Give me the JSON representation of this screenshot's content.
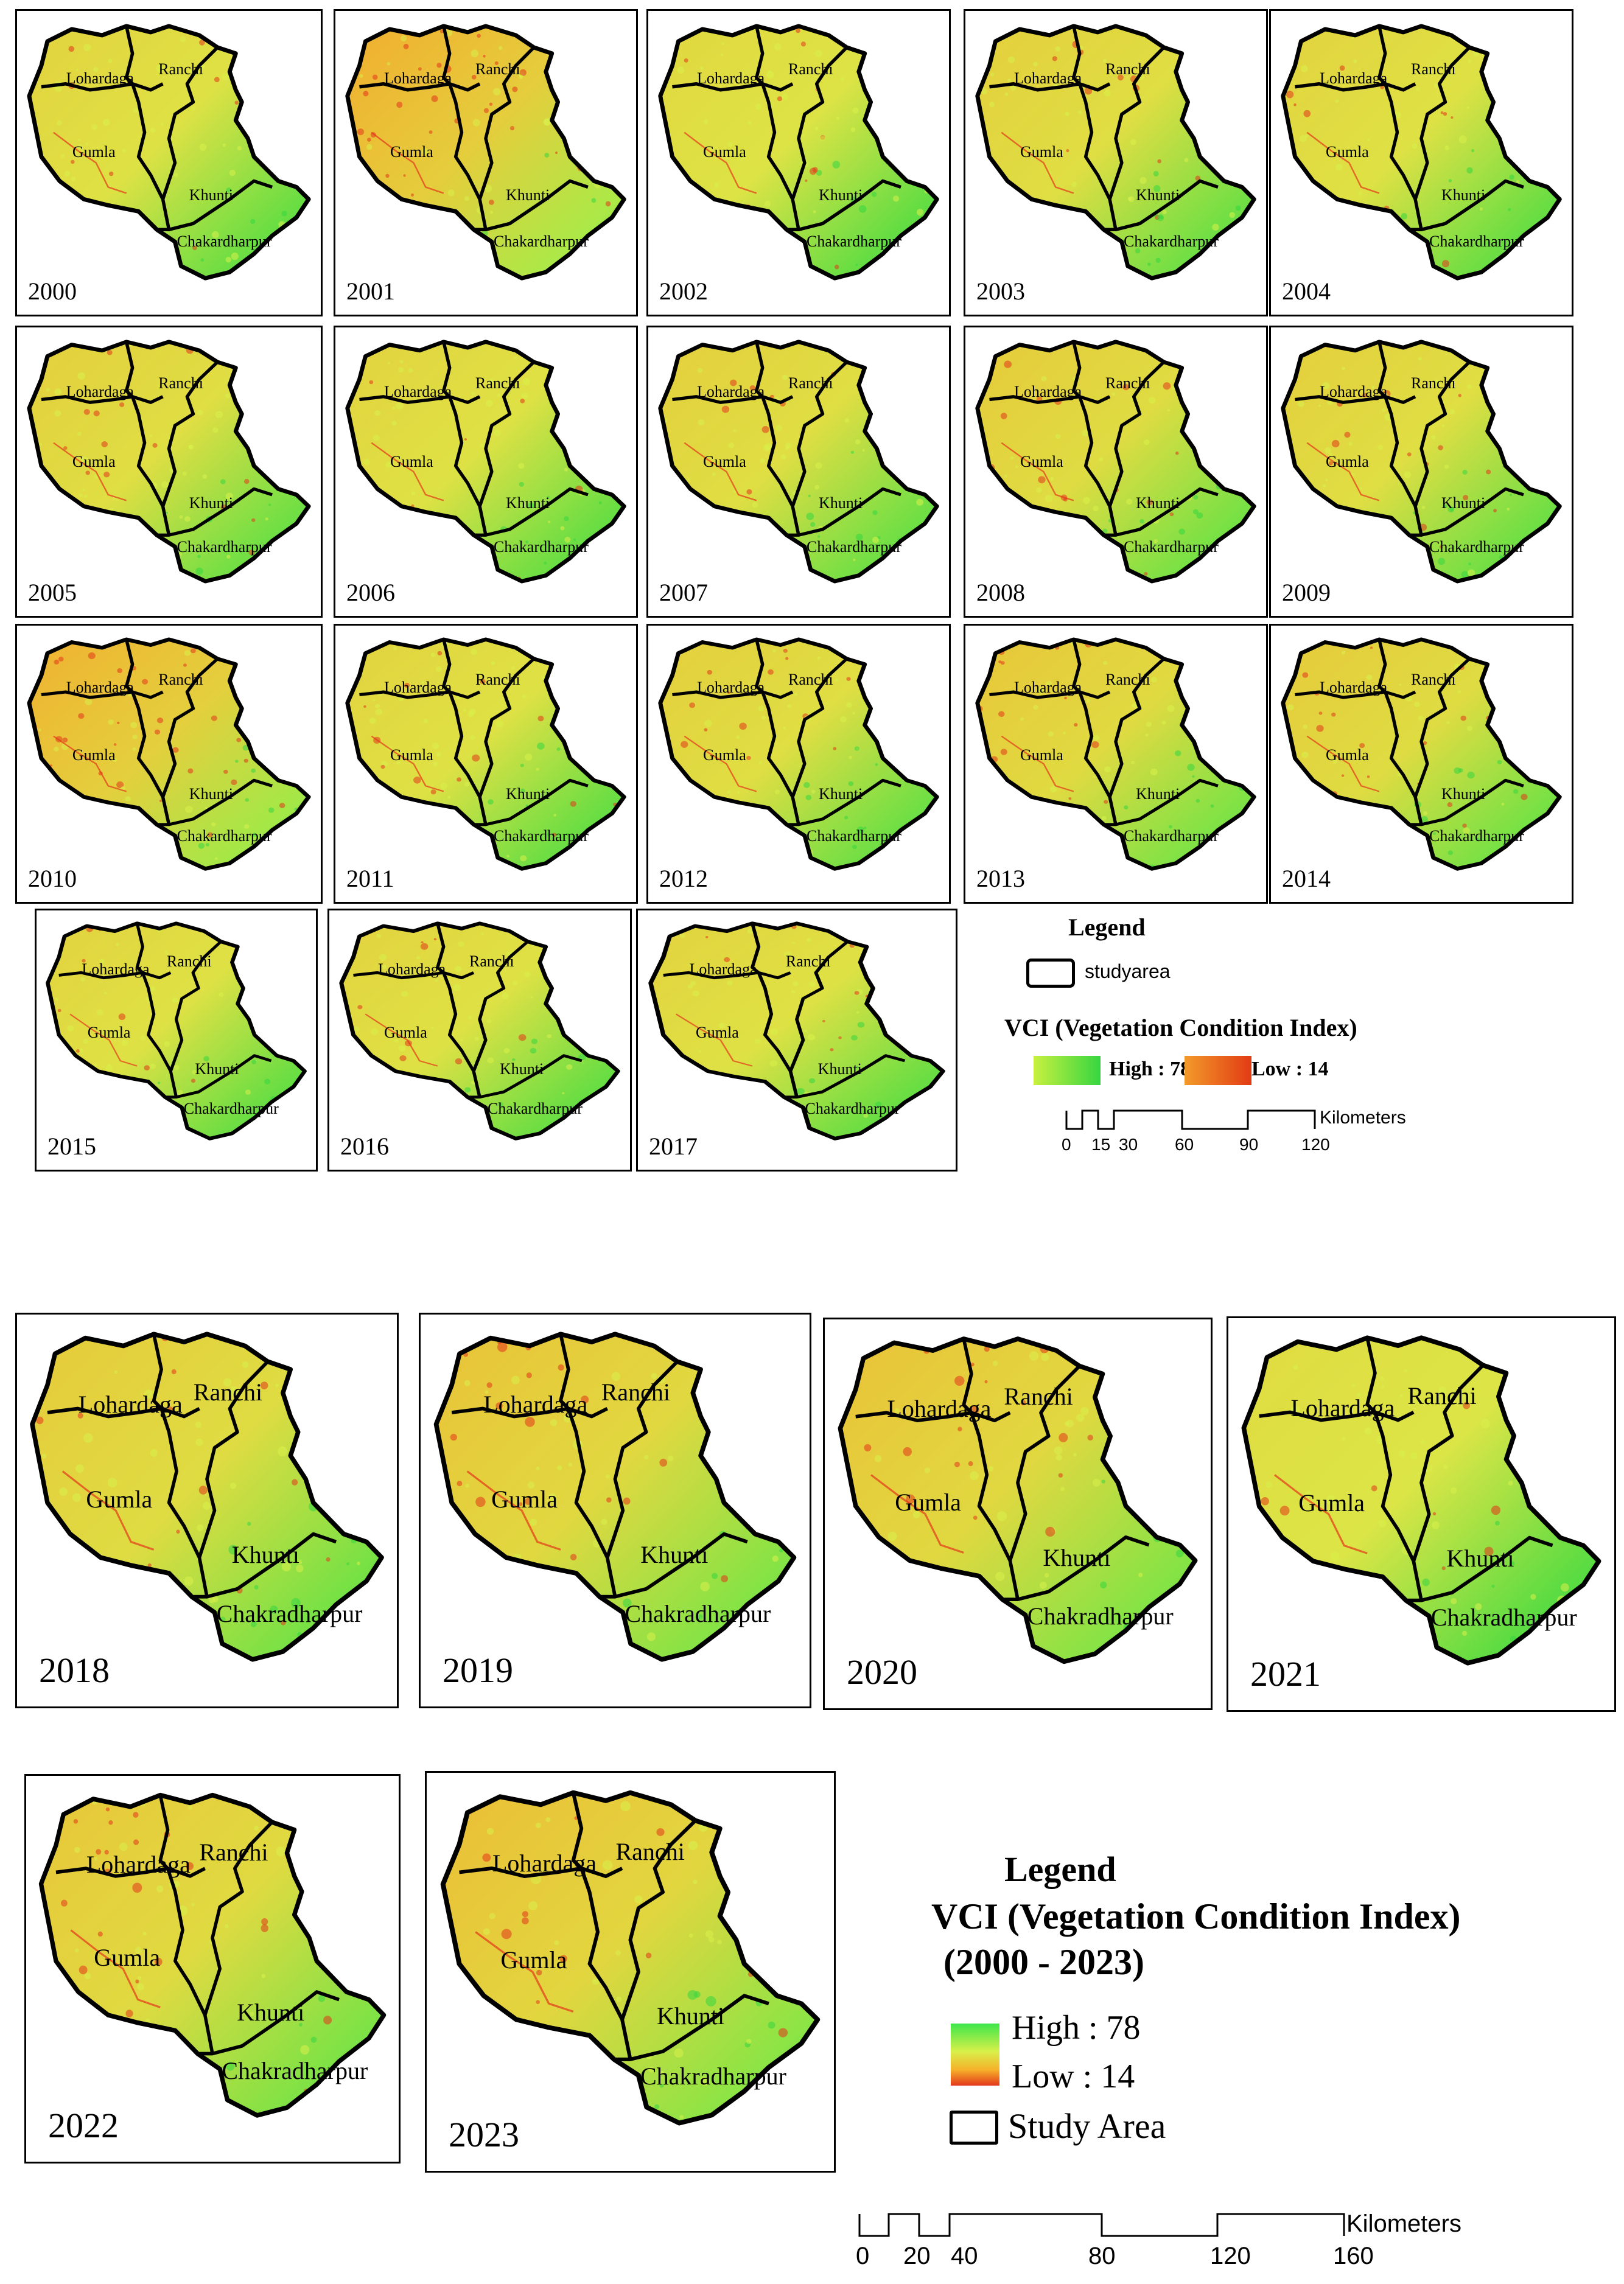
{
  "districts": [
    "Lohardaga",
    "Ranchi",
    "Gumla",
    "Khunti",
    "Chakardharpur"
  ],
  "districts_lower": [
    "Lohardaga",
    "Ranchi",
    "Gumla",
    "Khunti",
    "Chakradharpur"
  ],
  "panels_top": [
    {
      "year": "2000",
      "stress": 0.35
    },
    {
      "year": "2001",
      "stress": 0.8
    },
    {
      "year": "2002",
      "stress": 0.3
    },
    {
      "year": "2003",
      "stress": 0.4
    },
    {
      "year": "2004",
      "stress": 0.35
    },
    {
      "year": "2005",
      "stress": 0.4
    },
    {
      "year": "2006",
      "stress": 0.35
    },
    {
      "year": "2007",
      "stress": 0.4
    },
    {
      "year": "2008",
      "stress": 0.45
    },
    {
      "year": "2009",
      "stress": 0.4
    },
    {
      "year": "2010",
      "stress": 0.75
    },
    {
      "year": "2011",
      "stress": 0.35
    },
    {
      "year": "2012",
      "stress": 0.4
    },
    {
      "year": "2013",
      "stress": 0.5
    },
    {
      "year": "2014",
      "stress": 0.45
    },
    {
      "year": "2015",
      "stress": 0.35
    },
    {
      "year": "2016",
      "stress": 0.35
    },
    {
      "year": "2017",
      "stress": 0.35
    }
  ],
  "panels_bottom": [
    {
      "year": "2018",
      "stress": 0.45
    },
    {
      "year": "2019",
      "stress": 0.55
    },
    {
      "year": "2020",
      "stress": 0.55
    },
    {
      "year": "2021",
      "stress": 0.25
    },
    {
      "year": "2022",
      "stress": 0.5
    },
    {
      "year": "2023",
      "stress": 0.6
    }
  ],
  "legend_top": {
    "title": "Legend",
    "study_area": "studyarea",
    "vci_title": "VCI (Vegetation Condition Index)",
    "high": "High : 78",
    "low": "Low : 14",
    "scale_ticks": [
      "0",
      "15",
      "30",
      "60",
      "90",
      "120"
    ],
    "scale_unit": "Kilometers"
  },
  "legend_bottom": {
    "title": "Legend",
    "vci_title": "VCI (Vegetation Condition Index)",
    "period": "(2000 - 2023)",
    "high": "High : 78",
    "low": "Low : 14",
    "study_area": "Study Area",
    "scale_ticks": [
      "0",
      "20",
      "40",
      "80",
      "120",
      "160"
    ],
    "scale_unit": "Kilometers"
  },
  "colors": {
    "high": "#36d640",
    "mid": "#d8f04a",
    "low_orange": "#f6a02a",
    "low_red": "#e2371a",
    "boundary": "#000000"
  }
}
